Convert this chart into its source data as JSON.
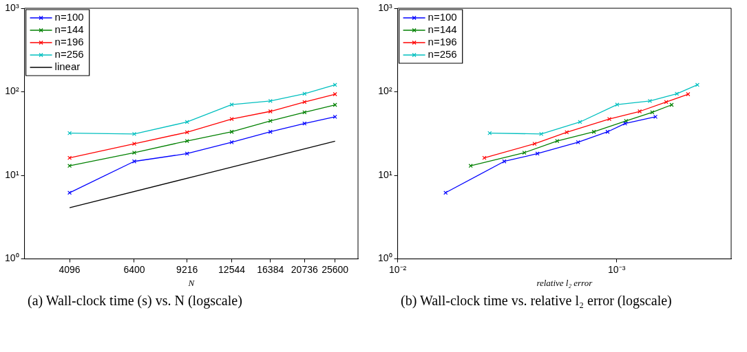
{
  "chart_data": [
    {
      "type": "line",
      "xlabel": "N",
      "log": "xy",
      "legend": "top left",
      "marker": "cross",
      "line_style": "solid",
      "grid": false,
      "x": [
        4096,
        6400,
        9216,
        12544,
        16384,
        20736,
        25600
      ],
      "xlim": [
        3000,
        30000
      ],
      "xticks": [
        4096,
        6400,
        9216,
        12544,
        16384,
        20736,
        25600
      ],
      "ylim": [
        1,
        1000
      ],
      "yticks": [
        {
          "value": 1,
          "label": "10⁰"
        },
        {
          "value": 10,
          "label": "10¹"
        },
        {
          "value": 100,
          "label": "10²"
        },
        {
          "value": 1000,
          "label": "10³"
        }
      ],
      "series": [
        {
          "name": "n=100",
          "color": "#0000ff",
          "values": [
            6.2,
            14.7,
            18.2,
            24.9,
            33.2,
            41.7,
            50.2
          ]
        },
        {
          "name": "n=144",
          "color": "#008000",
          "values": [
            13.0,
            18.7,
            25.8,
            33.2,
            44.8,
            56.9,
            69.8
          ]
        },
        {
          "name": "n=196",
          "color": "#ff0000",
          "values": [
            16.2,
            23.9,
            32.8,
            47.2,
            58.3,
            75.5,
            93.6
          ]
        },
        {
          "name": "n=256",
          "color": "#00bfbf",
          "values": [
            32.0,
            31.3,
            43.5,
            70.2,
            77.8,
            94.9,
            121
          ]
        },
        {
          "name": "linear",
          "color": "#000000",
          "marker": "none",
          "x": [
            4096,
            25600
          ],
          "values": [
            4.1,
            25.6
          ]
        }
      ],
      "annotations": [
        "(a) Wall-clock time (s) vs. N (logscale)"
      ]
    },
    {
      "type": "line",
      "xlabel": "relative l₂ error",
      "log": "xy",
      "legend": "top left",
      "marker": "cross",
      "line_style": "solid",
      "grid": false,
      "xlim": [
        0.01,
        0.0003
      ],
      "xticks": [
        {
          "value": 0.01,
          "label": "10⁻²"
        },
        {
          "value": 0.001,
          "label": "10⁻³"
        }
      ],
      "ylim": [
        1,
        1000
      ],
      "yticks": [
        {
          "value": 1,
          "label": "10⁰"
        },
        {
          "value": 10,
          "label": "10¹"
        },
        {
          "value": 100,
          "label": "10²"
        },
        {
          "value": 1000,
          "label": "10³"
        }
      ],
      "series": [
        {
          "name": "n=100",
          "color": "#0000ff",
          "x": [
            0.00604,
            0.00326,
            0.0023,
            0.0015,
            0.0011,
            0.000915,
            0.000665
          ],
          "values": [
            6.2,
            14.7,
            18.2,
            24.9,
            33.2,
            41.7,
            50.2
          ]
        },
        {
          "name": "n=144",
          "color": "#008000",
          "x": [
            0.00464,
            0.00264,
            0.00187,
            0.00127,
            0.000906,
            0.000688,
            0.000561
          ],
          "values": [
            13.0,
            18.7,
            25.8,
            33.2,
            44.8,
            56.9,
            69.8
          ]
        },
        {
          "name": "n=196",
          "color": "#ff0000",
          "x": [
            0.00402,
            0.00237,
            0.00169,
            0.00108,
            0.000785,
            0.000594,
            0.000472
          ],
          "values": [
            16.2,
            23.9,
            32.8,
            47.2,
            58.3,
            75.5,
            93.6
          ]
        },
        {
          "name": "n=256",
          "color": "#00bfbf",
          "x": [
            0.0038,
            0.00221,
            0.00147,
            0.000995,
            0.000705,
            0.000531,
            0.000428
          ],
          "values": [
            32.0,
            31.3,
            43.5,
            70.2,
            77.8,
            94.9,
            121
          ]
        }
      ],
      "annotations": [
        "(b) Wall-clock time vs. relative l₂ error (logscale)"
      ]
    }
  ]
}
